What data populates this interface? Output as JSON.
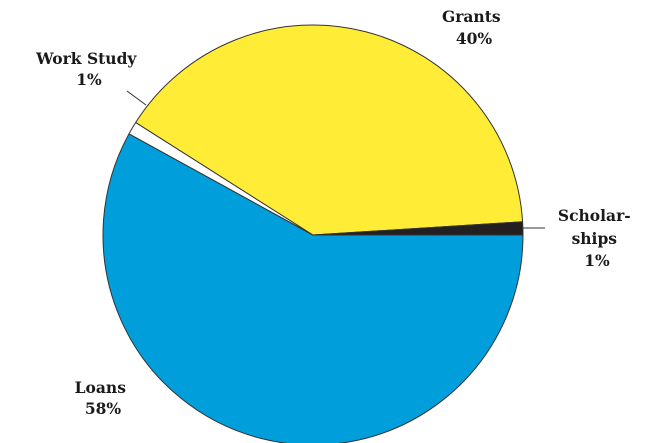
{
  "chart_data": {
    "type": "pie",
    "title": "",
    "start_angle_deg": 0,
    "direction": "clockwise",
    "slices": [
      {
        "label_lines": [
          "Loans",
          "58%"
        ],
        "value": 58,
        "color": "#009fdb"
      },
      {
        "label_lines": [
          "Work Study",
          "1%"
        ],
        "value": 1,
        "color": "#ffffff"
      },
      {
        "label_lines": [
          "Grants",
          "40%"
        ],
        "value": 40,
        "color": "#ffec37"
      },
      {
        "label_lines": [
          "Scholar-",
          "ships",
          "1%"
        ],
        "value": 1,
        "color": "#231f20"
      }
    ]
  }
}
